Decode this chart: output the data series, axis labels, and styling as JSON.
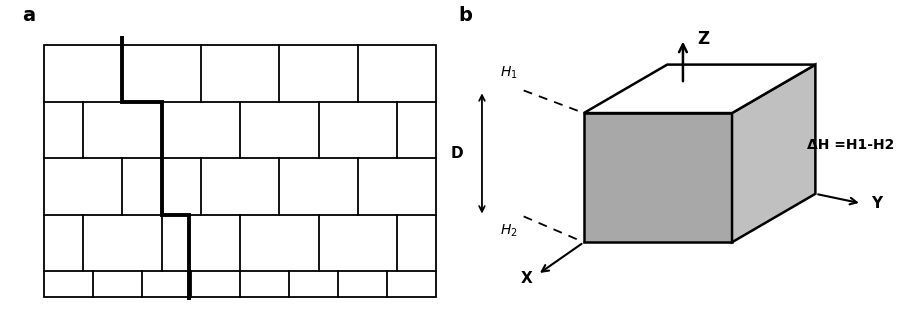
{
  "fig_width": 9.08,
  "fig_height": 3.23,
  "dpi": 100,
  "label_a": "a",
  "label_b": "b",
  "label_fontsize": 14,
  "label_fontweight": "bold",
  "crack_lw": 2.8,
  "grid_lw": 1.3,
  "dH_text": "ΔH =H1-H2",
  "Z_label": "Z",
  "X_label": "X",
  "Y_label": "Y",
  "H1_label": "H",
  "H2_label": "H",
  "D_label": "D",
  "box_gray_left": "#a8a8a8",
  "box_gray_right": "#c0c0c0",
  "box_gray_bottom": "#b4b4b4"
}
